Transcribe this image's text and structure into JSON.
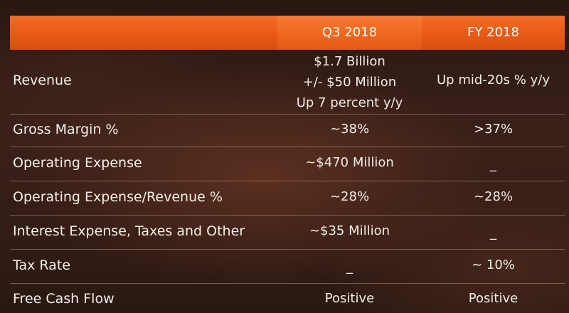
{
  "header": {
    "col_q3": "Q3 2018",
    "col_fy": "FY 2018"
  },
  "rows": [
    {
      "label": "Revenue",
      "q3_line1": "$1.7 Billion",
      "q3_line2": "+/- $50 Million",
      "q3_line3": "Up 7 percent y/y",
      "fy": "Up mid-20s % y/y"
    },
    {
      "label": "Gross Margin %",
      "q3": "~38%",
      "fy": ">37%"
    },
    {
      "label": "Operating Expense",
      "q3": "~$470 Million",
      "fy": "_"
    },
    {
      "label": "Operating Expense/Revenue %",
      "q3": "~28%",
      "fy": "~28%"
    },
    {
      "label": "Interest Expense, Taxes and Other",
      "q3": "~$35 Million",
      "fy": "_"
    },
    {
      "label": "Tax Rate",
      "q3": "_",
      "fy": "~ 10%"
    },
    {
      "label": "Free Cash Flow",
      "q3": "Positive",
      "fy": "Positive"
    }
  ],
  "colors": {
    "header_orange": "#e85a15",
    "header_orange_highlight": "#f57a33",
    "background_dark": "#2a1812",
    "text": "#f2ece6"
  }
}
